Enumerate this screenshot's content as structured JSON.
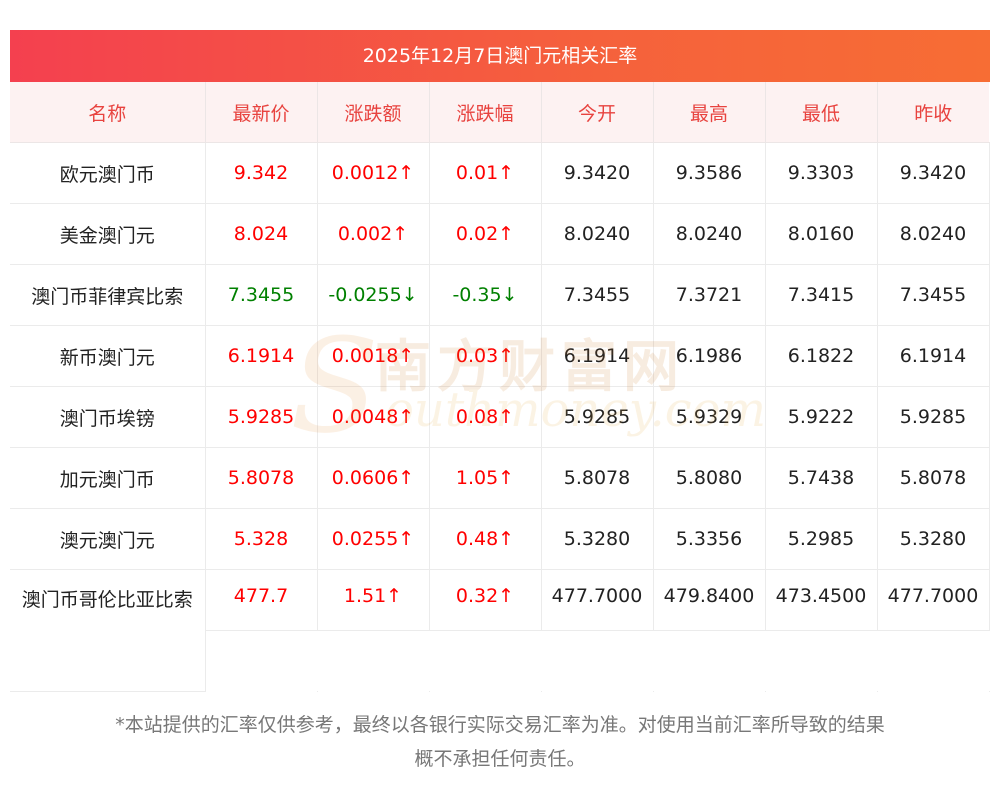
{
  "title": "2025年12月7日澳门元相关汇率",
  "headers": [
    "名称",
    "最新价",
    "涨跌额",
    "涨跌幅",
    "今开",
    "最高",
    "最低",
    "昨收"
  ],
  "rows": [
    {
      "name": "欧元澳门币",
      "latest": "9.342",
      "change": "0.0012↑",
      "pct": "0.01↑",
      "open": "9.3420",
      "high": "9.3586",
      "low": "9.3303",
      "prev": "9.3420"
    },
    {
      "name": "美金澳门元",
      "latest": "8.024",
      "change": "0.002↑",
      "pct": "0.02↑",
      "open": "8.0240",
      "high": "8.0240",
      "low": "8.0160",
      "prev": "8.0240"
    },
    {
      "name": "澳门币菲律宾比索",
      "latest": "7.3455",
      "change": "-0.0255↓",
      "pct": "-0.35↓",
      "open": "7.3455",
      "high": "7.3721",
      "low": "7.3415",
      "prev": "7.3455"
    },
    {
      "name": "新币澳门元",
      "latest": "6.1914",
      "change": "0.0018↑",
      "pct": "0.03↑",
      "open": "6.1914",
      "high": "6.1986",
      "low": "6.1822",
      "prev": "6.1914"
    },
    {
      "name": "澳门币埃镑",
      "latest": "5.9285",
      "change": "0.0048↑",
      "pct": "0.08↑",
      "open": "5.9285",
      "high": "5.9329",
      "low": "5.9222",
      "prev": "5.9285"
    },
    {
      "name": "加元澳门币",
      "latest": "5.8078",
      "change": "0.0606↑",
      "pct": "1.05↑",
      "open": "5.8078",
      "high": "5.8080",
      "low": "5.7438",
      "prev": "5.8078"
    },
    {
      "name": "澳元澳门元",
      "latest": "5.328",
      "change": "0.0255↑",
      "pct": "0.48↑",
      "open": "5.3280",
      "high": "5.3356",
      "low": "5.2985",
      "prev": "5.3280"
    },
    {
      "name": "澳门币哥伦比亚比索",
      "latest": "477.7",
      "change": "1.51↑",
      "pct": "0.32↑",
      "open": "477.7000",
      "high": "479.8400",
      "low": "473.4500",
      "prev": "477.7000"
    }
  ],
  "watermark": {
    "cn": "南方财富网",
    "en": "outhmoney.com",
    "s": "S"
  },
  "disclaimer_line1": "*本站提供的汇率仅供参考，最终以各银行实际交易汇率为准。对使用当前汇率所导致的结果",
  "disclaimer_line2": "概不承担任何责任。",
  "colors": {
    "header_bg": "#f4404f",
    "header_text": "#e8433f",
    "up": "#ff0000",
    "down": "#008000"
  }
}
